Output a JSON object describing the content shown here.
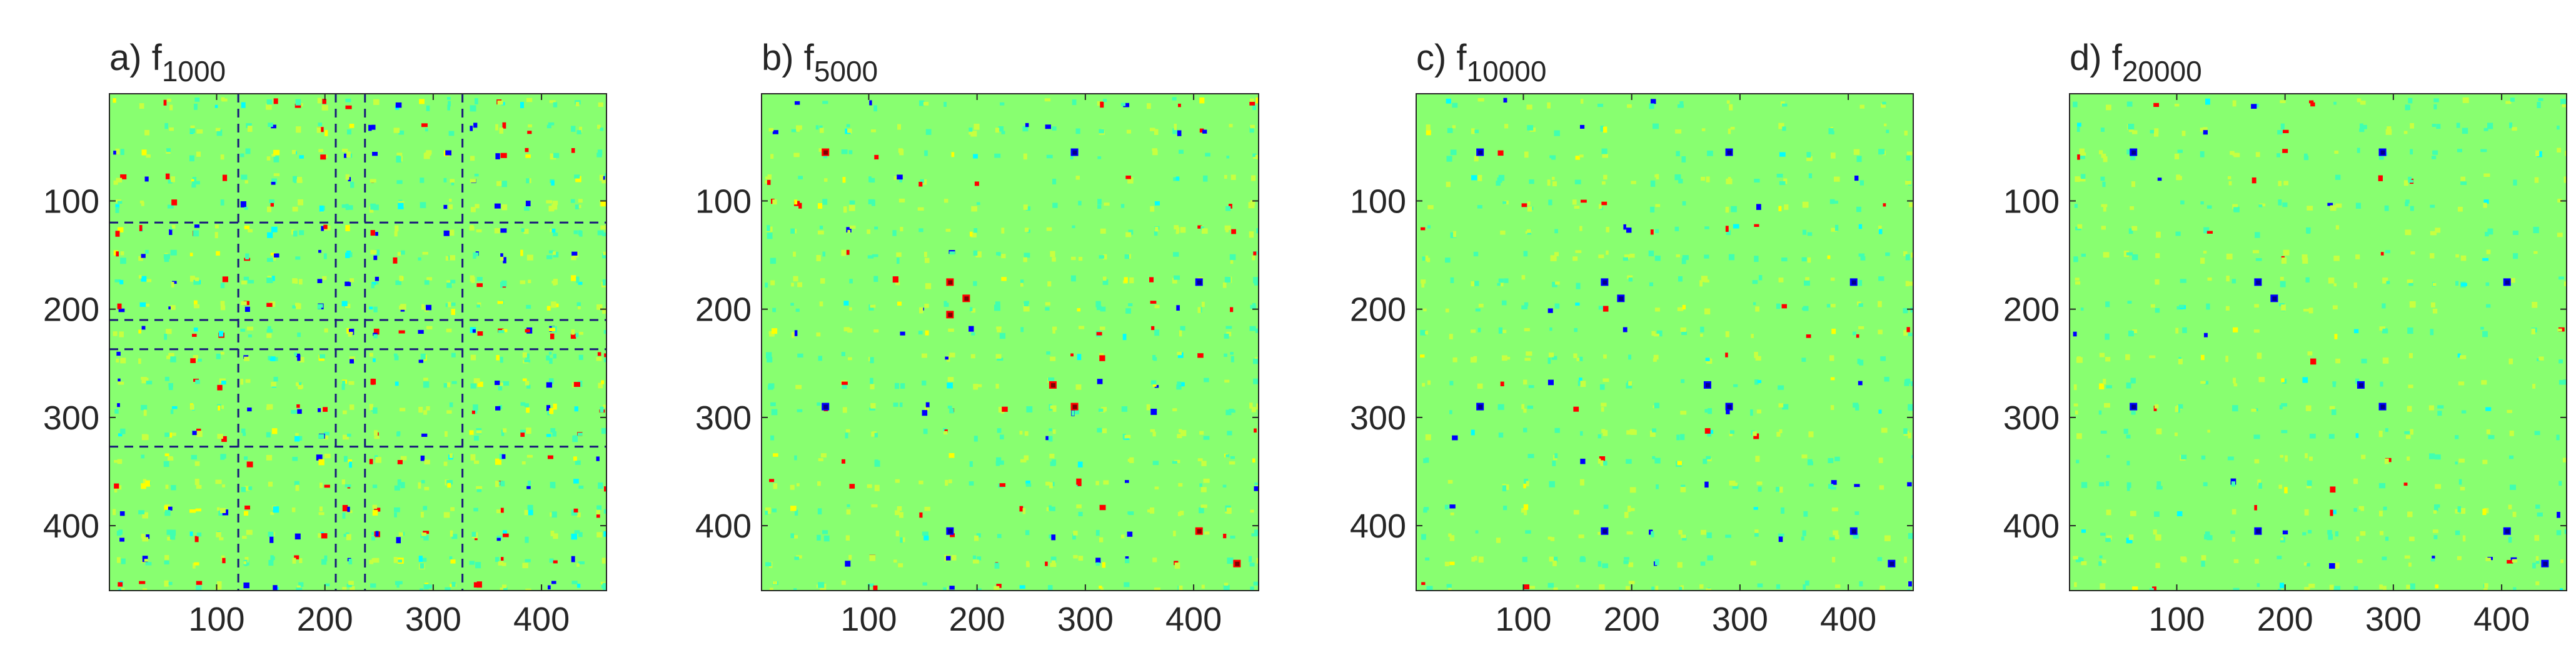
{
  "figure": {
    "panel_count": 4,
    "colormap": [
      "#00008f",
      "#0000ff",
      "#00ffff",
      "#88ff70",
      "#ffff00",
      "#ff0000",
      "#800000"
    ],
    "background_color": "#88ff70"
  },
  "chart_data": [
    {
      "type": "heatmap",
      "label_prefix": "a) f",
      "label_subscript": "1000",
      "xlabel": "",
      "ylabel": "",
      "xlim": [
        1,
        460
      ],
      "ylim": [
        1,
        460
      ],
      "x_ticks": [
        100,
        200,
        300,
        400
      ],
      "y_ticks": [
        100,
        200,
        300,
        400
      ],
      "grid": false,
      "density": 0.55,
      "dashed_lines": [
        120,
        210,
        237,
        327
      ],
      "hotspots": []
    },
    {
      "type": "heatmap",
      "label_prefix": "b) f",
      "label_subscript": "5000",
      "xlabel": "",
      "ylabel": "",
      "xlim": [
        1,
        460
      ],
      "ylim": [
        1,
        460
      ],
      "x_ticks": [
        100,
        200,
        300,
        400
      ],
      "y_ticks": [
        100,
        200,
        300,
        400
      ],
      "grid": false,
      "density": 0.3,
      "dashed_lines": [],
      "hotspots": [
        {
          "x": 60,
          "y": 55,
          "sign": 1
        },
        {
          "x": 290,
          "y": 55,
          "sign": -1
        },
        {
          "x": 175,
          "y": 175,
          "sign": 1
        },
        {
          "x": 190,
          "y": 190,
          "sign": 1
        },
        {
          "x": 175,
          "y": 205,
          "sign": 1
        },
        {
          "x": 270,
          "y": 270,
          "sign": 1
        },
        {
          "x": 290,
          "y": 290,
          "sign": 1
        },
        {
          "x": 60,
          "y": 290,
          "sign": -1
        },
        {
          "x": 405,
          "y": 175,
          "sign": -1
        },
        {
          "x": 405,
          "y": 405,
          "sign": 1
        },
        {
          "x": 440,
          "y": 435,
          "sign": 1
        },
        {
          "x": 175,
          "y": 405,
          "sign": -1
        }
      ]
    },
    {
      "type": "heatmap",
      "label_prefix": "c) f",
      "label_subscript": "10000",
      "xlabel": "",
      "ylabel": "",
      "xlim": [
        1,
        460
      ],
      "ylim": [
        1,
        460
      ],
      "x_ticks": [
        100,
        200,
        300,
        400
      ],
      "y_ticks": [
        100,
        200,
        300,
        400
      ],
      "grid": false,
      "density": 0.22,
      "dashed_lines": [],
      "hotspots": [
        {
          "x": 60,
          "y": 55,
          "sign": -1
        },
        {
          "x": 290,
          "y": 55,
          "sign": -1
        },
        {
          "x": 175,
          "y": 175,
          "sign": -1
        },
        {
          "x": 190,
          "y": 190,
          "sign": -1
        },
        {
          "x": 270,
          "y": 270,
          "sign": -1
        },
        {
          "x": 290,
          "y": 290,
          "sign": -1
        },
        {
          "x": 60,
          "y": 290,
          "sign": -1
        },
        {
          "x": 405,
          "y": 175,
          "sign": -1
        },
        {
          "x": 405,
          "y": 405,
          "sign": -1
        },
        {
          "x": 440,
          "y": 435,
          "sign": -1
        },
        {
          "x": 175,
          "y": 405,
          "sign": -1
        }
      ]
    },
    {
      "type": "heatmap",
      "label_prefix": "d) f",
      "label_subscript": "20000",
      "xlabel": "",
      "ylabel": "",
      "xlim": [
        1,
        460
      ],
      "ylim": [
        1,
        460
      ],
      "x_ticks": [
        100,
        200,
        300,
        400
      ],
      "y_ticks": [
        100,
        200,
        300,
        400
      ],
      "grid": false,
      "density": 0.2,
      "dashed_lines": [],
      "hotspots": [
        {
          "x": 60,
          "y": 55,
          "sign": -1
        },
        {
          "x": 290,
          "y": 55,
          "sign": -1
        },
        {
          "x": 175,
          "y": 175,
          "sign": -1
        },
        {
          "x": 190,
          "y": 190,
          "sign": -1
        },
        {
          "x": 270,
          "y": 270,
          "sign": -1
        },
        {
          "x": 290,
          "y": 290,
          "sign": -1
        },
        {
          "x": 60,
          "y": 290,
          "sign": -1
        },
        {
          "x": 405,
          "y": 175,
          "sign": -1
        },
        {
          "x": 405,
          "y": 405,
          "sign": -1
        },
        {
          "x": 440,
          "y": 435,
          "sign": -1
        },
        {
          "x": 175,
          "y": 405,
          "sign": -1
        }
      ]
    }
  ]
}
